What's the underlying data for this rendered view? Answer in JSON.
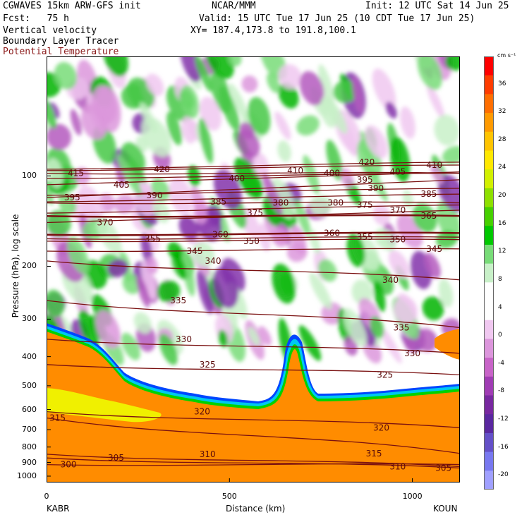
{
  "header": {
    "model": "CGWAVES 15km ARW-GFS init",
    "org": "NCAR/MMM",
    "init": "Init: 12 UTC Sat 14 Jun 25",
    "fcst": "Fcst:   75 h",
    "valid": "Valid: 15 UTC Tue 17 Jun 25 (10 CDT Tue 17 Jun 25)",
    "field1": "Vertical velocity",
    "xy": "XY= 187.4,173.8 to 191.8,100.1",
    "field2": "Boundary Layer Tracer",
    "field3": "Potential Temperature"
  },
  "chart_data": {
    "type": "heatmap",
    "xlabel": "Distance (km)",
    "ylabel": "Pressure (hPa), log scale",
    "x_ticks": [
      "0",
      "500",
      "1000"
    ],
    "x_ticks_values": [
      0,
      500,
      1000
    ],
    "xlim": [
      0,
      1130
    ],
    "y_ticks": [
      "100",
      "200",
      "300",
      "400",
      "500",
      "600",
      "700",
      "800",
      "900",
      "1000"
    ],
    "y_ticks_values": [
      100,
      200,
      300,
      400,
      500,
      600,
      700,
      800,
      900,
      1000
    ],
    "left_label": "KABR",
    "right_label": "KOUN",
    "colorbar": {
      "unit": "cm s⁻¹",
      "tick_labels": [
        "36",
        "32",
        "28",
        "24",
        "20",
        "16",
        "12",
        "8",
        "4",
        "0",
        "-4",
        "-8",
        "-12",
        "-16",
        "-20"
      ],
      "tick_values": [
        36,
        32,
        28,
        24,
        20,
        16,
        12,
        8,
        4,
        0,
        -4,
        -8,
        -12,
        -16,
        -20
      ],
      "colors": [
        "#ff0000",
        "#ff3c00",
        "#ff6e00",
        "#ff9a00",
        "#ffc400",
        "#ffe800",
        "#d2f000",
        "#8ee000",
        "#46d000",
        "#00c800",
        "#78dc78",
        "#c8f0c8",
        "#ffffff",
        "#ffffff",
        "#f0c8f0",
        "#dc96dc",
        "#c864c8",
        "#a03cb4",
        "#7828a0",
        "#5a28a0",
        "#6450c8",
        "#7878f0",
        "#a0a0ff"
      ]
    },
    "theta_contour_labels": [
      {
        "value": 300,
        "x": 60,
        "p": 915
      },
      {
        "value": 305,
        "x": 190,
        "p": 870
      },
      {
        "value": 305,
        "x": 1085,
        "p": 940
      },
      {
        "value": 310,
        "x": 440,
        "p": 845
      },
      {
        "value": 310,
        "x": 960,
        "p": 930
      },
      {
        "value": 315,
        "x": 30,
        "p": 640
      },
      {
        "value": 315,
        "x": 895,
        "p": 840
      },
      {
        "value": 320,
        "x": 425,
        "p": 610
      },
      {
        "value": 320,
        "x": 915,
        "p": 690
      },
      {
        "value": 325,
        "x": 440,
        "p": 425
      },
      {
        "value": 325,
        "x": 925,
        "p": 460
      },
      {
        "value": 330,
        "x": 375,
        "p": 350
      },
      {
        "value": 330,
        "x": 1000,
        "p": 390
      },
      {
        "value": 335,
        "x": 360,
        "p": 260
      },
      {
        "value": 335,
        "x": 970,
        "p": 320
      },
      {
        "value": 340,
        "x": 455,
        "p": 192
      },
      {
        "value": 340,
        "x": 940,
        "p": 222
      },
      {
        "value": 345,
        "x": 405,
        "p": 178
      },
      {
        "value": 345,
        "x": 1060,
        "p": 175
      },
      {
        "value": 350,
        "x": 560,
        "p": 165
      },
      {
        "value": 350,
        "x": 960,
        "p": 163
      },
      {
        "value": 355,
        "x": 290,
        "p": 162
      },
      {
        "value": 355,
        "x": 870,
        "p": 160
      },
      {
        "value": 360,
        "x": 475,
        "p": 157
      },
      {
        "value": 360,
        "x": 780,
        "p": 155
      },
      {
        "value": 365,
        "x": 1045,
        "p": 136
      },
      {
        "value": 370,
        "x": 160,
        "p": 143
      },
      {
        "value": 370,
        "x": 960,
        "p": 130
      },
      {
        "value": 375,
        "x": 570,
        "p": 133
      },
      {
        "value": 375,
        "x": 870,
        "p": 125
      },
      {
        "value": 380,
        "x": 640,
        "p": 123
      },
      {
        "value": 380,
        "x": 790,
        "p": 123
      },
      {
        "value": 385,
        "x": 470,
        "p": 122
      },
      {
        "value": 385,
        "x": 1045,
        "p": 115
      },
      {
        "value": 390,
        "x": 295,
        "p": 116
      },
      {
        "value": 390,
        "x": 900,
        "p": 110
      },
      {
        "value": 395,
        "x": 70,
        "p": 118
      },
      {
        "value": 395,
        "x": 870,
        "p": 103
      },
      {
        "value": 400,
        "x": 520,
        "p": 102
      },
      {
        "value": 400,
        "x": 780,
        "p": 98
      },
      {
        "value": 405,
        "x": 205,
        "p": 107
      },
      {
        "value": 405,
        "x": 960,
        "p": 97
      },
      {
        "value": 410,
        "x": 680,
        "p": 96
      },
      {
        "value": 410,
        "x": 1060,
        "p": 92
      },
      {
        "value": 415,
        "x": 80,
        "p": 98
      },
      {
        "value": 420,
        "x": 315,
        "p": 95
      },
      {
        "value": 420,
        "x": 875,
        "p": 90
      }
    ]
  }
}
